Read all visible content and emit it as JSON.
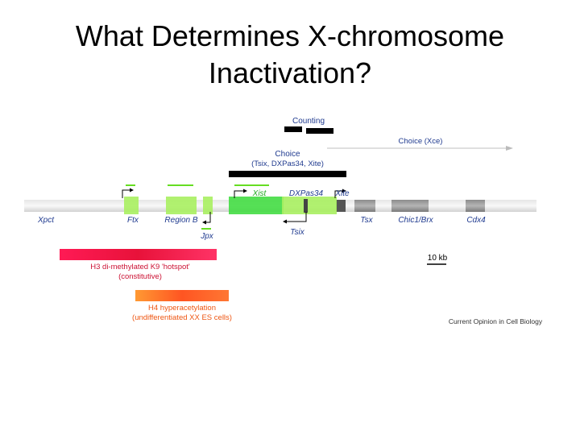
{
  "slide": {
    "title_line1": "What Determines X-chromosome",
    "title_line2": "Inactivation?"
  },
  "figure": {
    "labels": {
      "counting": "Counting",
      "choice": "Choice",
      "choice_members": "(Tsix, DXPas34, Xite)",
      "choice_xce": "Choice (Xce)"
    },
    "genes_above": {
      "xist": "Xist",
      "dxpas34": "DXPas34",
      "xite": "Xite"
    },
    "genes_below": {
      "xpct": "Xpct",
      "ftx": "Ftx",
      "region_b": "Region B",
      "jpx": "Jpx",
      "tsix": "Tsix",
      "tsx": "Tsx",
      "chic1_brx": "Chic1/Brx",
      "cdx4": "Cdx4"
    },
    "scale_bar": "10 kb",
    "h3_bar": {
      "line1": "H3 di-methylated K9 'hotspot'",
      "line2": "(constitutive)"
    },
    "h4_bar": {
      "line1": "H4 hyperacetylation",
      "line2": "(undifferentiated XX ES cells)"
    },
    "source": "Current Opinion in Cell Biology",
    "colors": {
      "highlight_green": "#99ee44",
      "xist_green": "#33dd33",
      "label_blue": "#1f3a8f",
      "gene_green": "#22aa22",
      "h3_red": "#ee1144",
      "h4_orange": "#ff6622"
    }
  }
}
